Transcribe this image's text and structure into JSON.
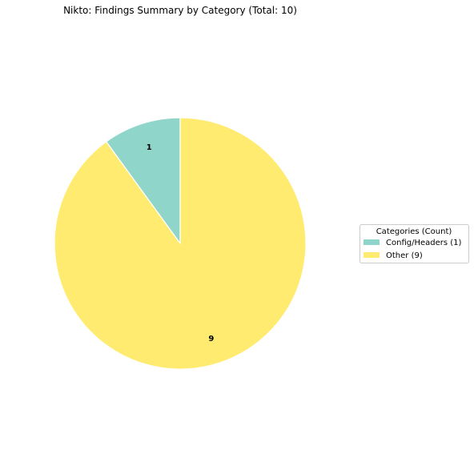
{
  "chart_data": {
    "type": "pie",
    "title": "Nikto: Findings Summary by Category (Total: 10)",
    "start_angle_deg": 90,
    "direction": "counterclockwise",
    "slices": [
      {
        "label": "Config/Headers",
        "value": 1,
        "value_label": "1",
        "color": "#8fd5c9"
      },
      {
        "label": "Other",
        "value": 9,
        "value_label": "9",
        "color": "#ffeb70"
      }
    ],
    "legend": {
      "title": "Categories (Count)",
      "placement": "center-right",
      "entries": [
        "Config/Headers (1)",
        "Other (9)"
      ]
    },
    "slice_edge_color": "#ffffff"
  }
}
